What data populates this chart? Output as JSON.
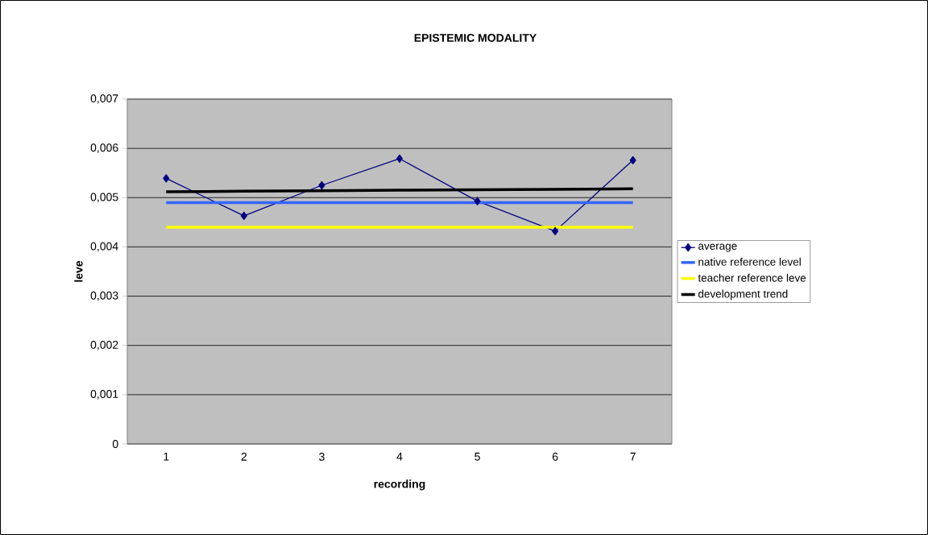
{
  "chart_data": {
    "type": "line",
    "title": "EPISTEMIC MODALITY",
    "xlabel": "recording",
    "ylabel": "leve",
    "categories": [
      "1",
      "2",
      "3",
      "4",
      "5",
      "6",
      "7"
    ],
    "series": [
      {
        "name": "average",
        "color": "#000080",
        "marker": "diamond",
        "values": [
          0.00539,
          0.00463,
          0.00525,
          0.00579,
          0.00493,
          0.00432,
          0.00576
        ]
      },
      {
        "name": "native reference level",
        "color": "#3366ff",
        "marker": "none",
        "values": [
          0.0049,
          0.0049,
          0.0049,
          0.0049,
          0.0049,
          0.0049,
          0.0049
        ]
      },
      {
        "name": "teacher reference leve",
        "color": "#ffff00",
        "marker": "none",
        "values": [
          0.0044,
          0.0044,
          0.0044,
          0.0044,
          0.0044,
          0.0044,
          0.0044
        ]
      },
      {
        "name": "development trend",
        "color": "#000000",
        "marker": "none",
        "values": [
          0.00512,
          0.00513,
          0.00514,
          0.00515,
          0.00516,
          0.00517,
          0.00518
        ]
      }
    ],
    "ylim": [
      0,
      0.007
    ],
    "yticks": [
      0,
      {
        "value": 0.001,
        "label": "0,001"
      },
      {
        "value": 0.002,
        "label": "0,002"
      },
      {
        "value": 0.003,
        "label": "0,003"
      },
      {
        "value": 0.004,
        "label": "0,004"
      },
      {
        "value": 0.005,
        "label": "0,005"
      },
      {
        "value": 0.006,
        "label": "0,006"
      },
      {
        "value": 0.007,
        "label": "0,007"
      }
    ],
    "grid": "y",
    "legend": "right"
  }
}
